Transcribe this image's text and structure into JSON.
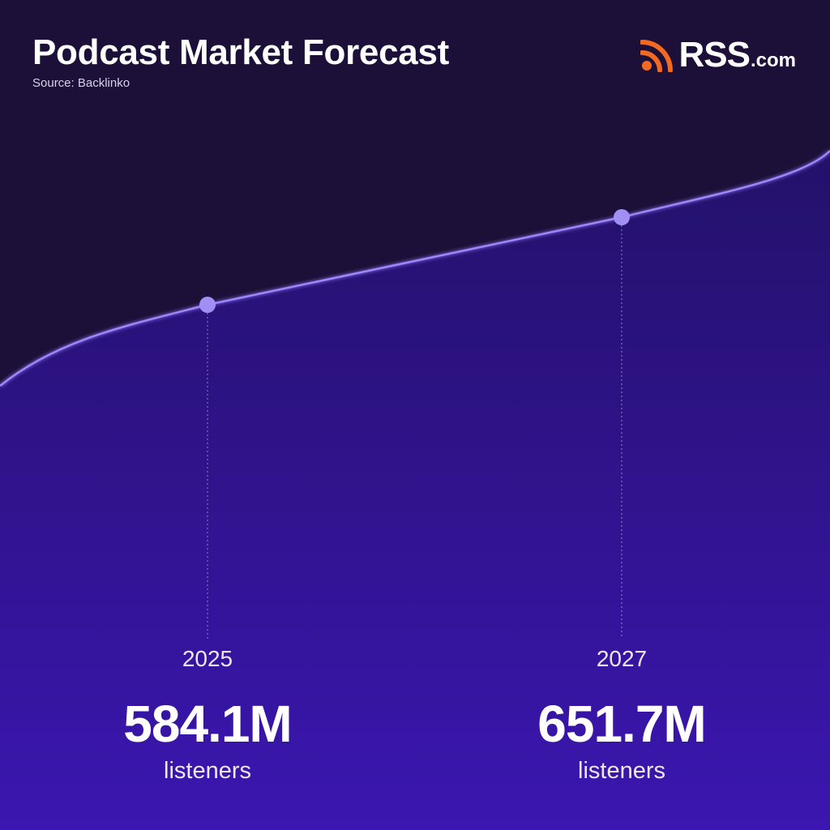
{
  "header": {
    "title": "Podcast Market Forecast",
    "source": "Source: Backlinko"
  },
  "brand": {
    "logo_main": "RSS",
    "logo_suffix": ".com",
    "icon": "rss-feed-icon",
    "icon_color": "#f26a21"
  },
  "colors": {
    "background_top": "#1c0f38",
    "area_top": "#24116a",
    "area_bottom": "#3b16b0",
    "curve": "#9d86ff",
    "marker": "#a28ff5"
  },
  "chart_data": {
    "type": "area",
    "points": [
      {
        "year": "2025",
        "value": 584.1,
        "value_label": "584.1M",
        "unit": "listeners"
      },
      {
        "year": "2027",
        "value": 651.7,
        "value_label": "651.7M",
        "unit": "listeners"
      }
    ],
    "grid": false,
    "legend": "none"
  }
}
